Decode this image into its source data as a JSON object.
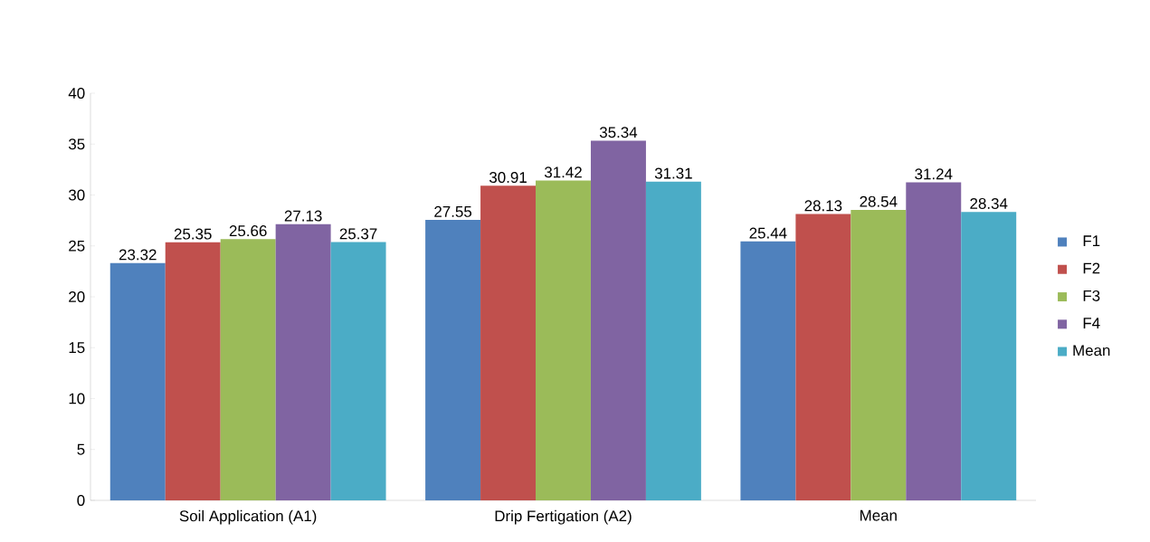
{
  "chart_data": {
    "type": "bar",
    "categories": [
      "Soil Application (A1)",
      "Drip Fertigation (A2)",
      "Mean"
    ],
    "series": [
      {
        "name": "F1",
        "color": "#4f81bd",
        "values": [
          23.32,
          27.55,
          25.44
        ]
      },
      {
        "name": "F2",
        "color": "#c0504d",
        "values": [
          25.35,
          30.91,
          28.13
        ]
      },
      {
        "name": "F3",
        "color": "#9bbb59",
        "values": [
          25.66,
          31.42,
          28.54
        ]
      },
      {
        "name": "F4",
        "color": "#8064a2",
        "values": [
          27.13,
          35.34,
          31.24
        ]
      },
      {
        "name": "Mean",
        "color": "#4bacc6",
        "values": [
          25.37,
          31.31,
          28.34
        ]
      }
    ],
    "ylim": [
      0,
      40
    ],
    "yticks": [
      0,
      5,
      10,
      15,
      20,
      25,
      30,
      35,
      40
    ],
    "data_labels": true,
    "legend": "right",
    "grid": false
  }
}
